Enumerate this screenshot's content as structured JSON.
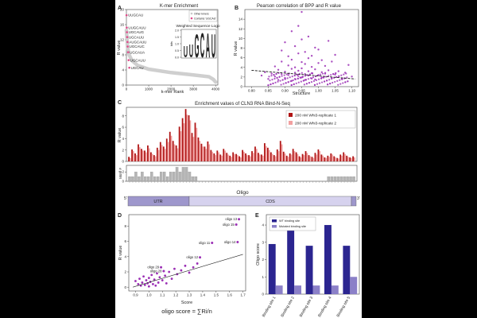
{
  "colors": {
    "gray": "#c8c8c8",
    "magenta": "#e04a8a",
    "purple": "#9b2fb5",
    "darkred": "#b01515",
    "pink": "#f2a0a0",
    "navy": "#2b2590",
    "lavender": "#8b80c8",
    "utr": "#9e97cc",
    "cds": "#d6d2ee",
    "bargray": "#b5b5b5"
  },
  "chart_data": [
    {
      "panel": "A",
      "type": "line",
      "title": "K-mer Enrichment",
      "xlabel": "k-mer Rank",
      "ylabel": "R value",
      "xlim": [
        0,
        4100
      ],
      "ylim": [
        0,
        20
      ],
      "xticks": [
        "0",
        "1000",
        "2000",
        "3000",
        "4000"
      ],
      "yticks": [
        "0",
        "4",
        "8",
        "12",
        "16",
        "20"
      ],
      "legend": [
        "Other kmers",
        "Contains 'UGCAU'"
      ],
      "curve": [
        [
          0,
          14.5
        ],
        [
          50,
          10
        ],
        [
          120,
          8
        ],
        [
          250,
          6.5
        ],
        [
          500,
          5.2
        ],
        [
          1000,
          4.2
        ],
        [
          2000,
          3.3
        ],
        [
          3000,
          2.7
        ],
        [
          3700,
          2.2
        ],
        [
          3900,
          1.5
        ],
        [
          4000,
          0.8
        ]
      ],
      "highlighted_kmers": [
        {
          "label": "UUGCAU",
          "rank": 5,
          "value": 18.5
        },
        {
          "label": "UUGCAUU",
          "rank": 15,
          "value": 15.2
        },
        {
          "label": "UGCAUG",
          "rank": 25,
          "value": 14.0
        },
        {
          "label": "UGCAUU",
          "rank": 35,
          "value": 12.7
        },
        {
          "label": "AUGCAUU",
          "rank": 50,
          "value": 11.4
        },
        {
          "label": "UGCAUC",
          "rank": 60,
          "value": 10.2
        },
        {
          "label": "UGCAUA",
          "rank": 80,
          "value": 8.7
        },
        {
          "label": "UGCAUU",
          "rank": 100,
          "value": 6.6
        },
        {
          "label": "UGCAU",
          "rank": 130,
          "value": 4.6
        }
      ],
      "inset_title": "Weighted Sequence Logo",
      "inset_ylabel": "bits",
      "inset_yticks": [
        "0.0",
        "0.5",
        "1.0",
        "1.5",
        "2.0"
      ],
      "inset_letters": [
        "U",
        "U",
        "G",
        "C",
        "A",
        "U"
      ]
    },
    {
      "panel": "B",
      "type": "scatter",
      "title": "Pearson correlation of BPP and R value",
      "xlabel": "Structure",
      "ylabel": "R value",
      "xlim": [
        0.78,
        1.12
      ],
      "ylim": [
        0,
        16
      ],
      "xticks": [
        "0.80",
        "0.85",
        "0.90",
        "0.95",
        "1.00",
        "1.05",
        "1.10"
      ],
      "yticks": [
        "0",
        "2",
        "4",
        "6",
        "8",
        "10",
        "12",
        "14"
      ],
      "trend": [
        [
          0.8,
          3.4
        ],
        [
          1.11,
          1.6
        ]
      ],
      "points": [
        [
          0.83,
          2.3
        ],
        [
          0.84,
          3.0
        ],
        [
          0.85,
          1.6
        ],
        [
          0.86,
          2.7
        ],
        [
          0.87,
          4.2
        ],
        [
          0.87,
          2.1
        ],
        [
          0.88,
          3.5
        ],
        [
          0.88,
          1.4
        ],
        [
          0.89,
          5.2
        ],
        [
          0.89,
          2.6
        ],
        [
          0.89,
          7.5
        ],
        [
          0.9,
          3.1
        ],
        [
          0.9,
          1.8
        ],
        [
          0.9,
          9.2
        ],
        [
          0.91,
          4.4
        ],
        [
          0.91,
          2.4
        ],
        [
          0.91,
          6.3
        ],
        [
          0.92,
          3.7
        ],
        [
          0.92,
          1.2
        ],
        [
          0.92,
          11.5
        ],
        [
          0.92,
          5.6
        ],
        [
          0.93,
          2.9
        ],
        [
          0.93,
          8.4
        ],
        [
          0.93,
          4.0
        ],
        [
          0.93,
          1.6
        ],
        [
          0.94,
          6.9
        ],
        [
          0.94,
          3.3
        ],
        [
          0.94,
          2.2
        ],
        [
          0.94,
          12.6
        ],
        [
          0.95,
          5.1
        ],
        [
          0.95,
          1.9
        ],
        [
          0.95,
          3.8
        ],
        [
          0.95,
          9.8
        ],
        [
          0.96,
          2.6
        ],
        [
          0.96,
          4.7
        ],
        [
          0.96,
          7.2
        ],
        [
          0.96,
          1.4
        ],
        [
          0.97,
          3.2
        ],
        [
          0.97,
          5.9
        ],
        [
          0.97,
          2.3
        ],
        [
          0.97,
          10.4
        ],
        [
          0.98,
          4.1
        ],
        [
          0.98,
          1.7
        ],
        [
          0.98,
          6.4
        ],
        [
          0.98,
          2.8
        ],
        [
          0.99,
          3.6
        ],
        [
          0.99,
          8.1
        ],
        [
          0.99,
          1.5
        ],
        [
          1.0,
          4.9
        ],
        [
          1.0,
          2.4
        ],
        [
          1.0,
          7.7
        ],
        [
          1.01,
          3.0
        ],
        [
          1.01,
          5.5
        ],
        [
          1.01,
          1.9
        ],
        [
          1.02,
          4.3
        ],
        [
          1.02,
          2.7
        ],
        [
          1.03,
          9.5
        ],
        [
          1.03,
          3.4
        ],
        [
          1.04,
          1.8
        ],
        [
          1.04,
          5.2
        ],
        [
          1.05,
          2.5
        ],
        [
          1.05,
          6.6
        ],
        [
          1.06,
          3.2
        ],
        [
          1.07,
          1.6
        ],
        [
          1.08,
          2.9
        ],
        [
          1.09,
          4.5
        ],
        [
          1.1,
          2.1
        ],
        [
          0.95,
          15.5
        ]
      ]
    },
    {
      "panel": "C",
      "type": "bar",
      "title": "Enrichment values of CLN3 RNA Bind-N-Seq",
      "ylabel": "R value",
      "ylim": [
        0,
        9.5
      ],
      "yticks": [
        "0",
        "2",
        "4",
        "6",
        "8"
      ],
      "series": [
        {
          "name": "200 nM Whi3-replicate 1",
          "values": [
            0.8,
            2.1,
            1.4,
            3.0,
            2.2,
            1.9,
            2.8,
            1.6,
            1.1,
            2.4,
            3.4,
            2.6,
            4.0,
            5.2,
            3.6,
            2.8,
            6.1,
            7.6,
            9.2,
            8.1,
            5.0,
            6.8,
            4.2,
            3.1,
            2.6,
            3.5,
            2.0,
            1.4,
            1.9,
            1.2,
            2.2,
            1.5,
            1.0,
            1.6,
            1.3,
            0.9,
            2.0,
            1.4,
            1.1,
            1.8,
            2.6,
            1.5,
            1.2,
            3.2,
            2.4,
            1.6,
            1.1,
            2.1,
            3.6,
            1.7,
            1.0,
            1.4,
            2.2,
            1.6,
            0.9,
            1.3,
            1.8,
            1.1,
            0.8,
            1.5,
            2.1,
            1.2,
            0.7,
            1.0,
            1.4,
            0.9,
            0.6,
            1.2,
            1.6,
            1.0,
            0.7,
            0.9
          ]
        },
        {
          "name": "200 nM Whi3-replicate 2",
          "values": [
            0.6,
            1.8,
            1.1,
            2.5,
            1.9,
            1.6,
            2.3,
            1.3,
            0.9,
            2.0,
            2.9,
            2.2,
            3.4,
            4.5,
            3.0,
            2.3,
            5.3,
            6.7,
            8.2,
            7.2,
            4.3,
            5.9,
            3.6,
            2.6,
            2.2,
            3.0,
            1.7,
            1.1,
            1.6,
            1.0,
            1.9,
            1.2,
            0.8,
            1.3,
            1.1,
            0.7,
            1.7,
            1.1,
            0.9,
            1.5,
            2.2,
            1.2,
            1.0,
            2.7,
            2.0,
            1.3,
            0.9,
            1.8,
            3.0,
            1.4,
            0.8,
            1.2,
            1.8,
            1.3,
            0.7,
            1.1,
            1.5,
            0.9,
            0.6,
            1.2,
            1.8,
            1.0,
            0.6,
            0.8,
            1.2,
            0.7,
            0.5,
            1.0,
            1.3,
            0.8,
            0.6,
            0.7
          ]
        }
      ],
      "motif_label": "Motif #",
      "motif_yticks": [
        "0",
        "2"
      ],
      "motif_counts": [
        1,
        1,
        2,
        1,
        2,
        1,
        1,
        2,
        1,
        1,
        2,
        2,
        1,
        2,
        2,
        3,
        2,
        3,
        3,
        2,
        1,
        1,
        0,
        0,
        0,
        0,
        0,
        0,
        0,
        0,
        0,
        0,
        0,
        0,
        0,
        0,
        0,
        0,
        0,
        0,
        0,
        0,
        0,
        0,
        0,
        0,
        0,
        0,
        0,
        0,
        0,
        0,
        0,
        0,
        0,
        0,
        0,
        0,
        0,
        0,
        0,
        0,
        0,
        1,
        1,
        1,
        1,
        1,
        1,
        1,
        1,
        1
      ],
      "oligo_label": "Oligo",
      "track": {
        "five_prime": "5'",
        "three_prime": "3'",
        "utr": "UTR",
        "cds": "CDS"
      }
    },
    {
      "panel": "D",
      "type": "scatter",
      "xlabel": "Score",
      "ylabel": "R value",
      "xlim": [
        0.85,
        1.72
      ],
      "ylim": [
        -0.5,
        9.5
      ],
      "xticks": [
        "0.9",
        "1.0",
        "1.1",
        "1.2",
        "1.3",
        "1.4",
        "1.5",
        "1.6",
        "1.7"
      ],
      "yticks": [
        "0",
        "2",
        "4",
        "6",
        "8"
      ],
      "formula": "oligo score = ∑Ri/n",
      "trend": [
        [
          0.88,
          0.0
        ],
        [
          1.7,
          4.3
        ]
      ],
      "labeled_points": [
        {
          "label": "oligo 13",
          "x": 1.67,
          "y": 8.9
        },
        {
          "label": "oligo 15",
          "x": 1.65,
          "y": 8.2
        },
        {
          "label": "oligo 11",
          "x": 1.47,
          "y": 5.8
        },
        {
          "label": "oligo 14",
          "x": 1.66,
          "y": 5.9
        },
        {
          "label": "oligo 12",
          "x": 1.38,
          "y": 3.9
        },
        {
          "label": "oligo 29",
          "x": 1.09,
          "y": 2.6
        },
        {
          "label": "oligo 28",
          "x": 1.11,
          "y": 2.1
        }
      ],
      "points": [
        [
          0.9,
          0.8
        ],
        [
          0.92,
          0.4
        ],
        [
          0.93,
          1.1
        ],
        [
          0.94,
          0.2
        ],
        [
          0.95,
          0.6
        ],
        [
          0.96,
          1.4
        ],
        [
          0.97,
          0.3
        ],
        [
          0.98,
          0.9
        ],
        [
          0.99,
          0.5
        ],
        [
          1.0,
          1.2
        ],
        [
          1.0,
          0.1
        ],
        [
          1.01,
          0.7
        ],
        [
          1.02,
          1.6
        ],
        [
          1.03,
          0.4
        ],
        [
          1.04,
          1.0
        ],
        [
          1.05,
          0.2
        ],
        [
          1.06,
          1.8
        ],
        [
          1.07,
          0.6
        ],
        [
          1.08,
          1.3
        ],
        [
          1.1,
          0.9
        ],
        [
          1.12,
          1.5
        ],
        [
          1.13,
          0.5
        ],
        [
          1.15,
          2.0
        ],
        [
          1.17,
          1.1
        ],
        [
          1.19,
          2.4
        ],
        [
          1.21,
          1.7
        ],
        [
          1.24,
          2.2
        ],
        [
          1.27,
          2.8
        ],
        [
          1.3,
          1.9
        ],
        [
          1.33,
          2.6
        ],
        [
          1.36,
          3.1
        ]
      ]
    },
    {
      "panel": "E",
      "type": "bar",
      "ylabel": "Oligo score",
      "ylim": [
        0,
        4.6
      ],
      "yticks": [
        "0",
        "1",
        "2",
        "3",
        "4"
      ],
      "categories": [
        "Binding site 1",
        "Binding site 2",
        "Binding site 3",
        "Binding site 4",
        "Binding site 5"
      ],
      "series": [
        {
          "name": "WT binding site",
          "values": [
            2.9,
            3.7,
            2.8,
            4.0,
            2.8
          ]
        },
        {
          "name": "Mutated binding site",
          "values": [
            0.5,
            0.5,
            0.5,
            0.5,
            1.0
          ]
        }
      ]
    }
  ]
}
